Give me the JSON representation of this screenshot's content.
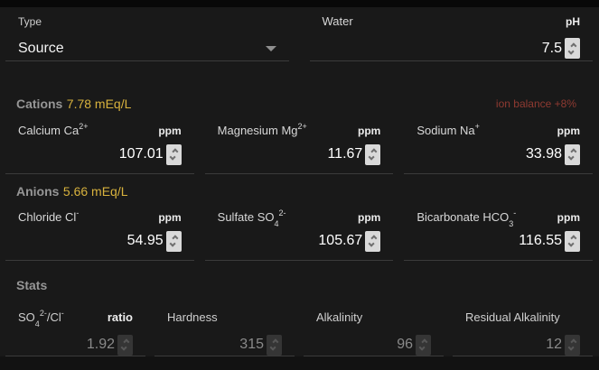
{
  "top": {
    "type_label": "Type",
    "type_value": "Source",
    "water_label": "Water",
    "ph_unit": "pH",
    "ph_value": "7.5"
  },
  "sections": {
    "cations": {
      "title": "Cations",
      "meq": "7.78 mEq/L",
      "ion_balance": "ion balance +8%"
    },
    "anions": {
      "title": "Anions",
      "meq": "5.66 mEq/L"
    },
    "stats": {
      "title": "Stats"
    }
  },
  "cations": [
    {
      "label": [
        [
          "t",
          "Calcium Ca"
        ],
        [
          "sup",
          "2+"
        ]
      ],
      "unit": "ppm",
      "value": "107.01"
    },
    {
      "label": [
        [
          "t",
          "Magnesium Mg"
        ],
        [
          "sup",
          "2+"
        ]
      ],
      "unit": "ppm",
      "value": "11.67"
    },
    {
      "label": [
        [
          "t",
          "Sodium Na"
        ],
        [
          "sup",
          "+"
        ]
      ],
      "unit": "ppm",
      "value": "33.98"
    }
  ],
  "anions": [
    {
      "label": [
        [
          "t",
          "Chloride Cl"
        ],
        [
          "sup",
          "-"
        ]
      ],
      "unit": "ppm",
      "value": "54.95"
    },
    {
      "label": [
        [
          "t",
          "Sulfate SO"
        ],
        [
          "sub",
          "4"
        ],
        [
          "sup",
          "2-"
        ]
      ],
      "unit": "ppm",
      "value": "105.67"
    },
    {
      "label": [
        [
          "t",
          "Bicarbonate HCO"
        ],
        [
          "sub",
          "3"
        ],
        [
          "sup",
          "-"
        ]
      ],
      "unit": "ppm",
      "value": "116.55"
    }
  ],
  "stats": [
    {
      "label": [
        [
          "t",
          "SO"
        ],
        [
          "sub",
          "4"
        ],
        [
          "sup",
          "2-"
        ],
        [
          "t",
          "/Cl"
        ],
        [
          "sup",
          "-"
        ]
      ],
      "unit": "ratio",
      "value": "1.92"
    },
    {
      "label": [
        [
          "t",
          "Hardness"
        ]
      ],
      "unit": "",
      "value": "315"
    },
    {
      "label": [
        [
          "t",
          "Alkalinity"
        ]
      ],
      "unit": "",
      "value": "96"
    },
    {
      "label": [
        [
          "t",
          "Residual Alkalinity"
        ]
      ],
      "unit": "",
      "value": "12"
    }
  ],
  "colors": {
    "panel_bg": "#191919",
    "accent_gold": "#d8b23d",
    "ion_balance_red": "#8f3a31",
    "spinner_bg": "#d9d9d9",
    "underline": "#3b3b3b"
  }
}
